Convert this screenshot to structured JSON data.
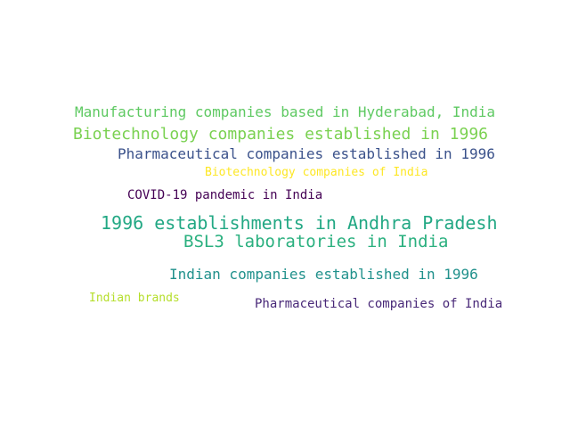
{
  "word_cloud": {
    "words": [
      {
        "text": "Manufacturing companies based in Hyderabad, India",
        "color": "#5ec962"
      },
      {
        "text": "Biotechnology companies established in 1996",
        "color": "#7ad151"
      },
      {
        "text": "Pharmaceutical companies established in 1996",
        "color": "#3b528b"
      },
      {
        "text": "Biotechnology companies of India",
        "color": "#fde725"
      },
      {
        "text": "COVID-19 pandemic in India",
        "color": "#440154"
      },
      {
        "text": "1996 establishments in Andhra Pradesh",
        "color": "#22a884"
      },
      {
        "text": "BSL3 laboratories in India",
        "color": "#2ab07f"
      },
      {
        "text": "Indian companies established in 1996",
        "color": "#21918c"
      },
      {
        "text": "Indian brands",
        "color": "#b5de2b"
      },
      {
        "text": "Pharmaceutical companies of India",
        "color": "#482878"
      }
    ]
  }
}
